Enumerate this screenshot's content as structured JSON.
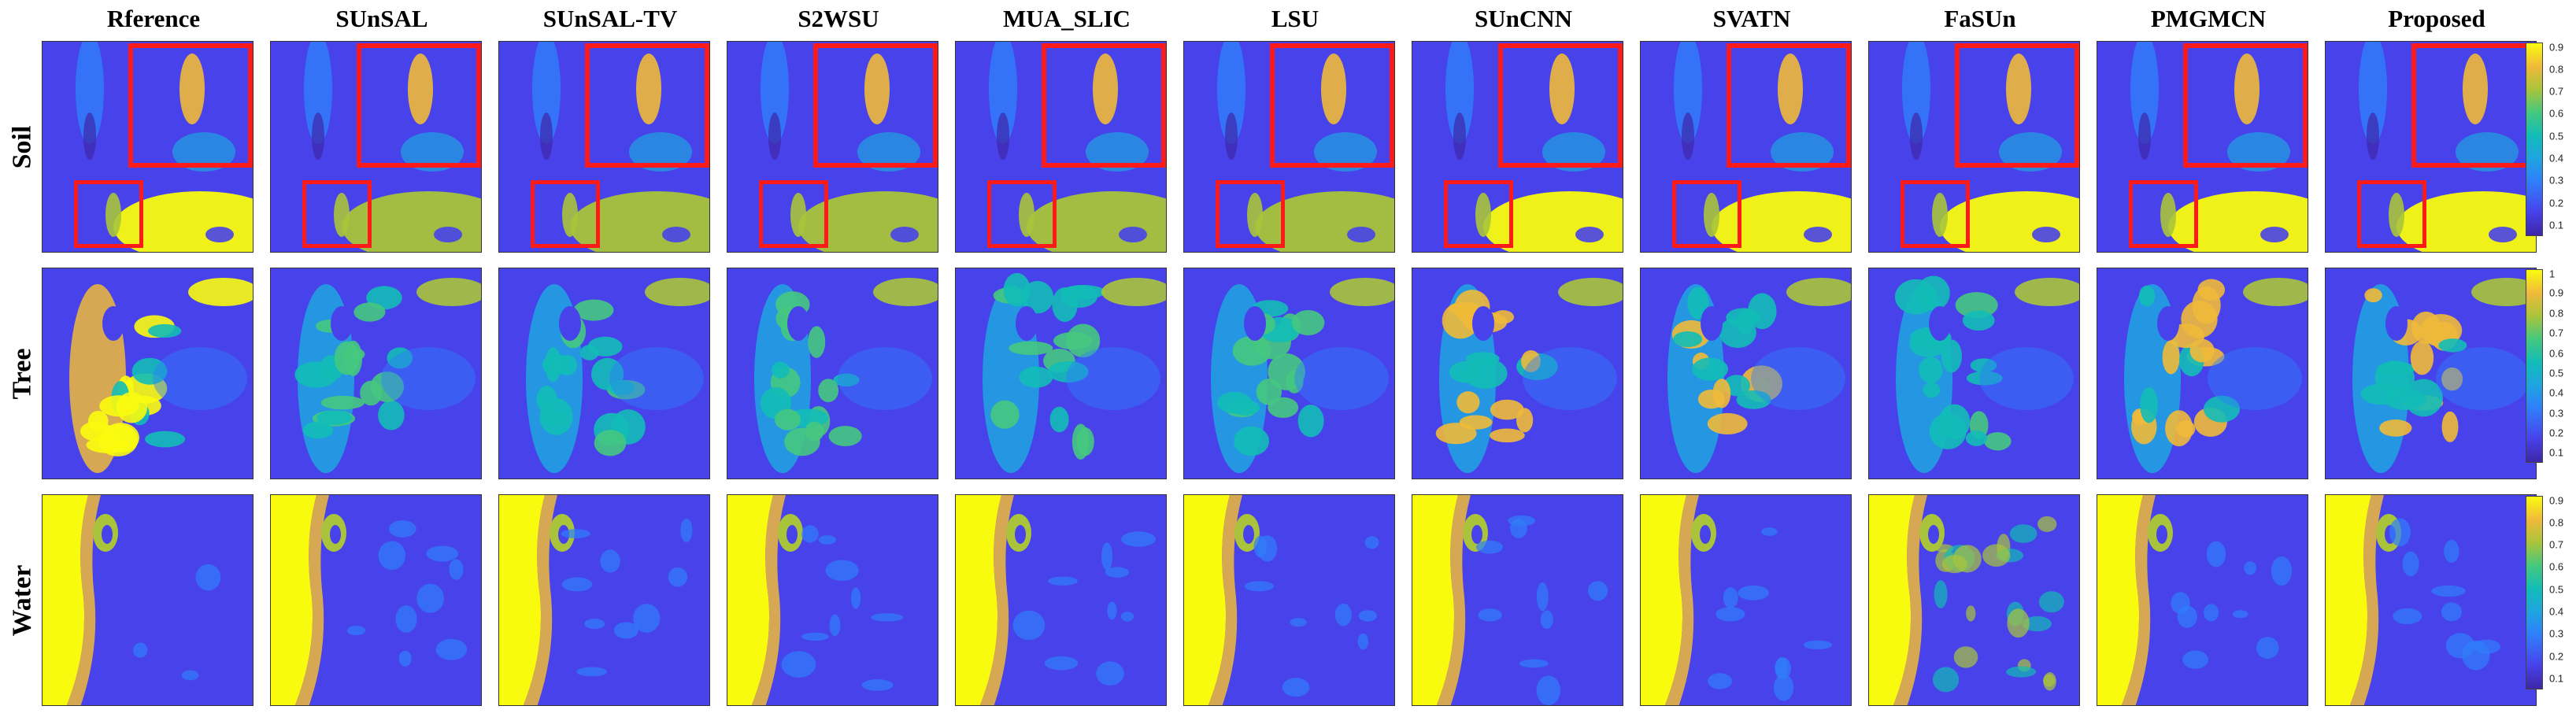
{
  "methods": [
    "Rference",
    "SUnSAL",
    "SUnSAL-TV",
    "S2WSU",
    "MUA_SLIC",
    "LSU",
    "SUnCNN",
    "SVATN",
    "FaSUn",
    "PMGMCN",
    "Proposed"
  ],
  "rows": [
    "Soil",
    "Tree",
    "Water"
  ],
  "colorbars": [
    [
      "0.9",
      "0.8",
      "0.7",
      "0.6",
      "0.5",
      "0.4",
      "0.3",
      "0.2",
      "0.1"
    ],
    [
      "1",
      "0.9",
      "0.8",
      "0.7",
      "0.6",
      "0.5",
      "0.4",
      "0.3",
      "0.2",
      "0.1"
    ],
    [
      "0.9",
      "0.8",
      "0.7",
      "0.6",
      "0.5",
      "0.4",
      "0.3",
      "0.2",
      "0.1"
    ]
  ],
  "colormap": [
    "#3e26a8",
    "#4742ea",
    "#2f7ffb",
    "#1fa4e0",
    "#12bcb7",
    "#45c87f",
    "#a9c43a",
    "#f0ba3a",
    "#f9fb0e"
  ],
  "inset_color": "#ff1a1a"
}
